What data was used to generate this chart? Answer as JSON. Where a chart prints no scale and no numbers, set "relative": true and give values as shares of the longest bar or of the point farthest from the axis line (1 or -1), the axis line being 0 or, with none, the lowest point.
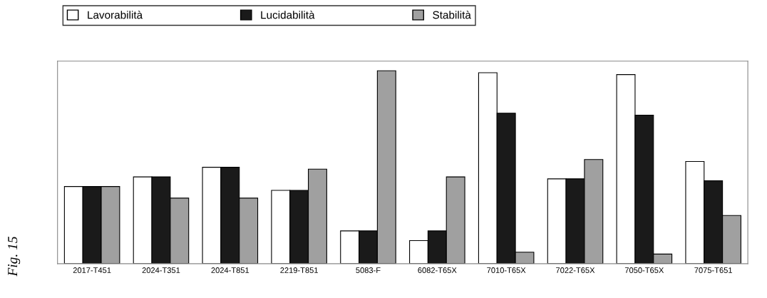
{
  "chart_data": {
    "type": "bar",
    "relative": true,
    "categories": [
      "2017-T451",
      "2024-T351",
      "2024-T851",
      "2219-T851",
      "5083-F",
      "6082-T65X",
      "7010-T65X",
      "7022-T65X",
      "7050-T65X",
      "7075-T651"
    ],
    "series": [
      {
        "name": "Lavorabilità",
        "color": "#ffffff",
        "values": [
          0.4,
          0.45,
          0.5,
          0.38,
          0.17,
          0.12,
          0.99,
          0.44,
          0.98,
          0.53
        ]
      },
      {
        "name": "Lucidabilità",
        "color": "#1a1a1a",
        "values": [
          0.4,
          0.45,
          0.5,
          0.38,
          0.17,
          0.17,
          0.78,
          0.44,
          0.77,
          0.43
        ]
      },
      {
        "name": "Stabilità",
        "color": "#a0a0a0",
        "values": [
          0.4,
          0.34,
          0.34,
          0.49,
          1.0,
          0.45,
          0.06,
          0.54,
          0.05,
          0.25
        ]
      }
    ],
    "legend": "top",
    "grid": false,
    "annotations": [
      "Fig. 15"
    ]
  }
}
